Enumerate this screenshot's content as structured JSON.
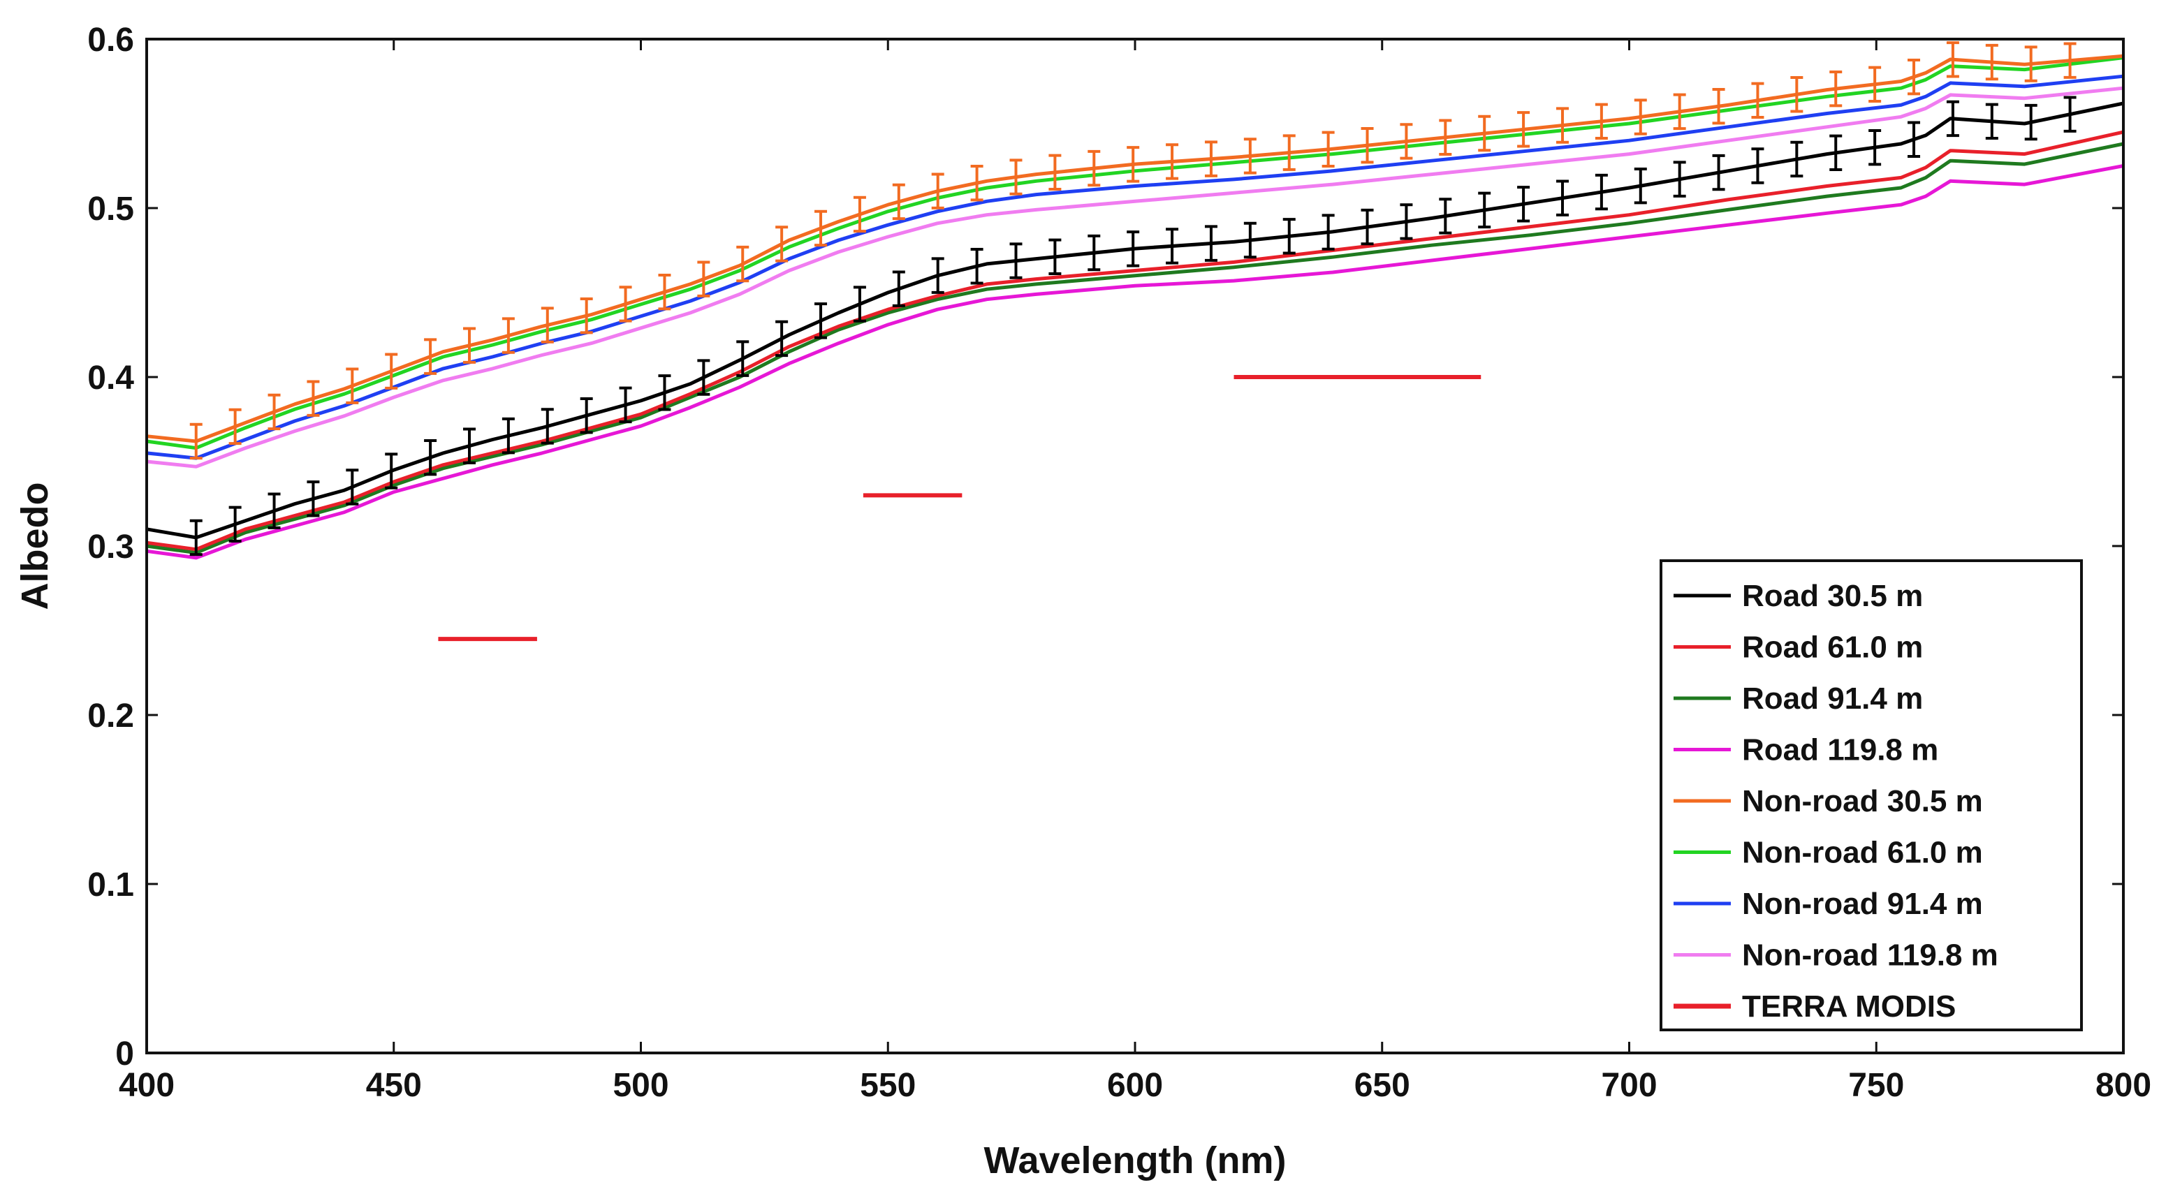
{
  "chart_data": {
    "type": "line",
    "xlabel": "Wavelength (nm)",
    "ylabel": "Albedo",
    "xlim": [
      400,
      800
    ],
    "ylim": [
      0,
      0.6
    ],
    "xticks": [
      "400",
      "450",
      "500",
      "550",
      "600",
      "650",
      "700",
      "750",
      "800"
    ],
    "yticks": [
      "0",
      "0.1",
      "0.2",
      "0.3",
      "0.4",
      "0.5",
      "0.6"
    ],
    "grid": false,
    "legend_position": "bottom-right",
    "series": [
      {
        "name": "Road 30.5 m",
        "color": "#000000",
        "error_bars": true,
        "error": 0.01,
        "x": [
          400,
          410,
          420,
          430,
          440,
          450,
          460,
          470,
          480,
          490,
          500,
          510,
          520,
          530,
          540,
          550,
          560,
          570,
          580,
          600,
          620,
          640,
          660,
          680,
          700,
          720,
          740,
          755,
          760,
          765,
          780,
          800
        ],
        "y": [
          0.31,
          0.305,
          0.315,
          0.325,
          0.333,
          0.345,
          0.355,
          0.363,
          0.37,
          0.378,
          0.386,
          0.396,
          0.41,
          0.425,
          0.438,
          0.45,
          0.46,
          0.467,
          0.47,
          0.476,
          0.48,
          0.486,
          0.494,
          0.503,
          0.512,
          0.522,
          0.532,
          0.538,
          0.543,
          0.553,
          0.55,
          0.562
        ]
      },
      {
        "name": "Road 61.0 m",
        "color": "#e8202a",
        "x": [
          400,
          410,
          420,
          430,
          440,
          450,
          460,
          470,
          480,
          490,
          500,
          510,
          520,
          530,
          540,
          550,
          560,
          570,
          580,
          600,
          620,
          640,
          660,
          680,
          700,
          720,
          740,
          755,
          760,
          765,
          780,
          800
        ],
        "y": [
          0.302,
          0.298,
          0.31,
          0.318,
          0.326,
          0.338,
          0.348,
          0.355,
          0.362,
          0.37,
          0.378,
          0.39,
          0.403,
          0.418,
          0.43,
          0.44,
          0.448,
          0.455,
          0.458,
          0.463,
          0.468,
          0.475,
          0.482,
          0.489,
          0.496,
          0.505,
          0.513,
          0.518,
          0.524,
          0.534,
          0.532,
          0.545
        ]
      },
      {
        "name": "Road 91.4 m",
        "color": "#1f7a1f",
        "x": [
          400,
          410,
          420,
          430,
          440,
          450,
          460,
          470,
          480,
          490,
          500,
          510,
          520,
          530,
          540,
          550,
          560,
          570,
          580,
          600,
          620,
          640,
          660,
          680,
          700,
          720,
          740,
          755,
          760,
          765,
          780,
          800
        ],
        "y": [
          0.3,
          0.296,
          0.308,
          0.316,
          0.324,
          0.336,
          0.346,
          0.353,
          0.36,
          0.368,
          0.376,
          0.388,
          0.4,
          0.415,
          0.428,
          0.438,
          0.446,
          0.452,
          0.455,
          0.46,
          0.465,
          0.471,
          0.478,
          0.484,
          0.491,
          0.499,
          0.507,
          0.512,
          0.518,
          0.528,
          0.526,
          0.538
        ]
      },
      {
        "name": "Road 119.8 m",
        "color": "#e617d6",
        "x": [
          400,
          410,
          420,
          430,
          440,
          450,
          460,
          470,
          480,
          490,
          500,
          510,
          520,
          530,
          540,
          550,
          560,
          570,
          580,
          600,
          620,
          640,
          660,
          680,
          700,
          720,
          740,
          755,
          760,
          765,
          780,
          800
        ],
        "y": [
          0.297,
          0.293,
          0.304,
          0.312,
          0.32,
          0.332,
          0.34,
          0.348,
          0.355,
          0.363,
          0.371,
          0.382,
          0.394,
          0.408,
          0.42,
          0.431,
          0.44,
          0.446,
          0.449,
          0.454,
          0.457,
          0.462,
          0.469,
          0.476,
          0.483,
          0.49,
          0.497,
          0.502,
          0.507,
          0.516,
          0.514,
          0.525
        ]
      },
      {
        "name": "Non-road 30.5 m",
        "color": "#f26b21",
        "error_bars": true,
        "error": 0.01,
        "x": [
          400,
          410,
          420,
          430,
          440,
          450,
          460,
          470,
          480,
          490,
          500,
          510,
          520,
          530,
          540,
          550,
          560,
          570,
          580,
          600,
          620,
          640,
          660,
          680,
          700,
          720,
          740,
          755,
          760,
          765,
          780,
          800
        ],
        "y": [
          0.365,
          0.362,
          0.373,
          0.384,
          0.393,
          0.404,
          0.415,
          0.422,
          0.43,
          0.437,
          0.446,
          0.455,
          0.466,
          0.481,
          0.492,
          0.502,
          0.51,
          0.516,
          0.52,
          0.526,
          0.53,
          0.535,
          0.541,
          0.547,
          0.553,
          0.561,
          0.57,
          0.575,
          0.58,
          0.588,
          0.585,
          0.59
        ]
      },
      {
        "name": "Non-road 61.0 m",
        "color": "#22d422",
        "x": [
          400,
          410,
          420,
          430,
          440,
          450,
          460,
          470,
          480,
          490,
          500,
          510,
          520,
          530,
          540,
          550,
          560,
          570,
          580,
          600,
          620,
          640,
          660,
          680,
          700,
          720,
          740,
          755,
          760,
          765,
          780,
          800
        ],
        "y": [
          0.362,
          0.358,
          0.37,
          0.381,
          0.39,
          0.401,
          0.412,
          0.419,
          0.427,
          0.434,
          0.443,
          0.452,
          0.463,
          0.477,
          0.488,
          0.498,
          0.506,
          0.512,
          0.516,
          0.522,
          0.527,
          0.532,
          0.538,
          0.544,
          0.55,
          0.558,
          0.566,
          0.571,
          0.576,
          0.584,
          0.582,
          0.589
        ]
      },
      {
        "name": "Non-road 91.4 m",
        "color": "#1f3ff2",
        "x": [
          400,
          410,
          420,
          430,
          440,
          450,
          460,
          470,
          480,
          490,
          500,
          510,
          520,
          530,
          540,
          550,
          560,
          570,
          580,
          600,
          620,
          640,
          660,
          680,
          700,
          720,
          740,
          755,
          760,
          765,
          780,
          800
        ],
        "y": [
          0.355,
          0.352,
          0.363,
          0.374,
          0.383,
          0.394,
          0.405,
          0.412,
          0.42,
          0.427,
          0.436,
          0.445,
          0.456,
          0.47,
          0.481,
          0.49,
          0.498,
          0.504,
          0.508,
          0.513,
          0.517,
          0.522,
          0.528,
          0.534,
          0.54,
          0.548,
          0.556,
          0.561,
          0.566,
          0.574,
          0.572,
          0.578
        ]
      },
      {
        "name": "Non-road 119.8 m",
        "color": "#f07cf0",
        "x": [
          400,
          410,
          420,
          430,
          440,
          450,
          460,
          470,
          480,
          490,
          500,
          510,
          520,
          530,
          540,
          550,
          560,
          570,
          580,
          600,
          620,
          640,
          660,
          680,
          700,
          720,
          740,
          755,
          760,
          765,
          780,
          800
        ],
        "y": [
          0.35,
          0.347,
          0.358,
          0.368,
          0.377,
          0.388,
          0.398,
          0.405,
          0.413,
          0.42,
          0.429,
          0.438,
          0.449,
          0.463,
          0.474,
          0.483,
          0.491,
          0.496,
          0.499,
          0.504,
          0.509,
          0.514,
          0.52,
          0.526,
          0.532,
          0.54,
          0.548,
          0.554,
          0.559,
          0.567,
          0.565,
          0.571
        ]
      }
    ],
    "modis": {
      "name": "TERRA MODIS",
      "color": "#e8202a",
      "segments": [
        {
          "x": [
            459,
            479
          ],
          "y": 0.245
        },
        {
          "x": [
            545,
            565
          ],
          "y": 0.33
        },
        {
          "x": [
            620,
            670
          ],
          "y": 0.4
        }
      ]
    }
  }
}
